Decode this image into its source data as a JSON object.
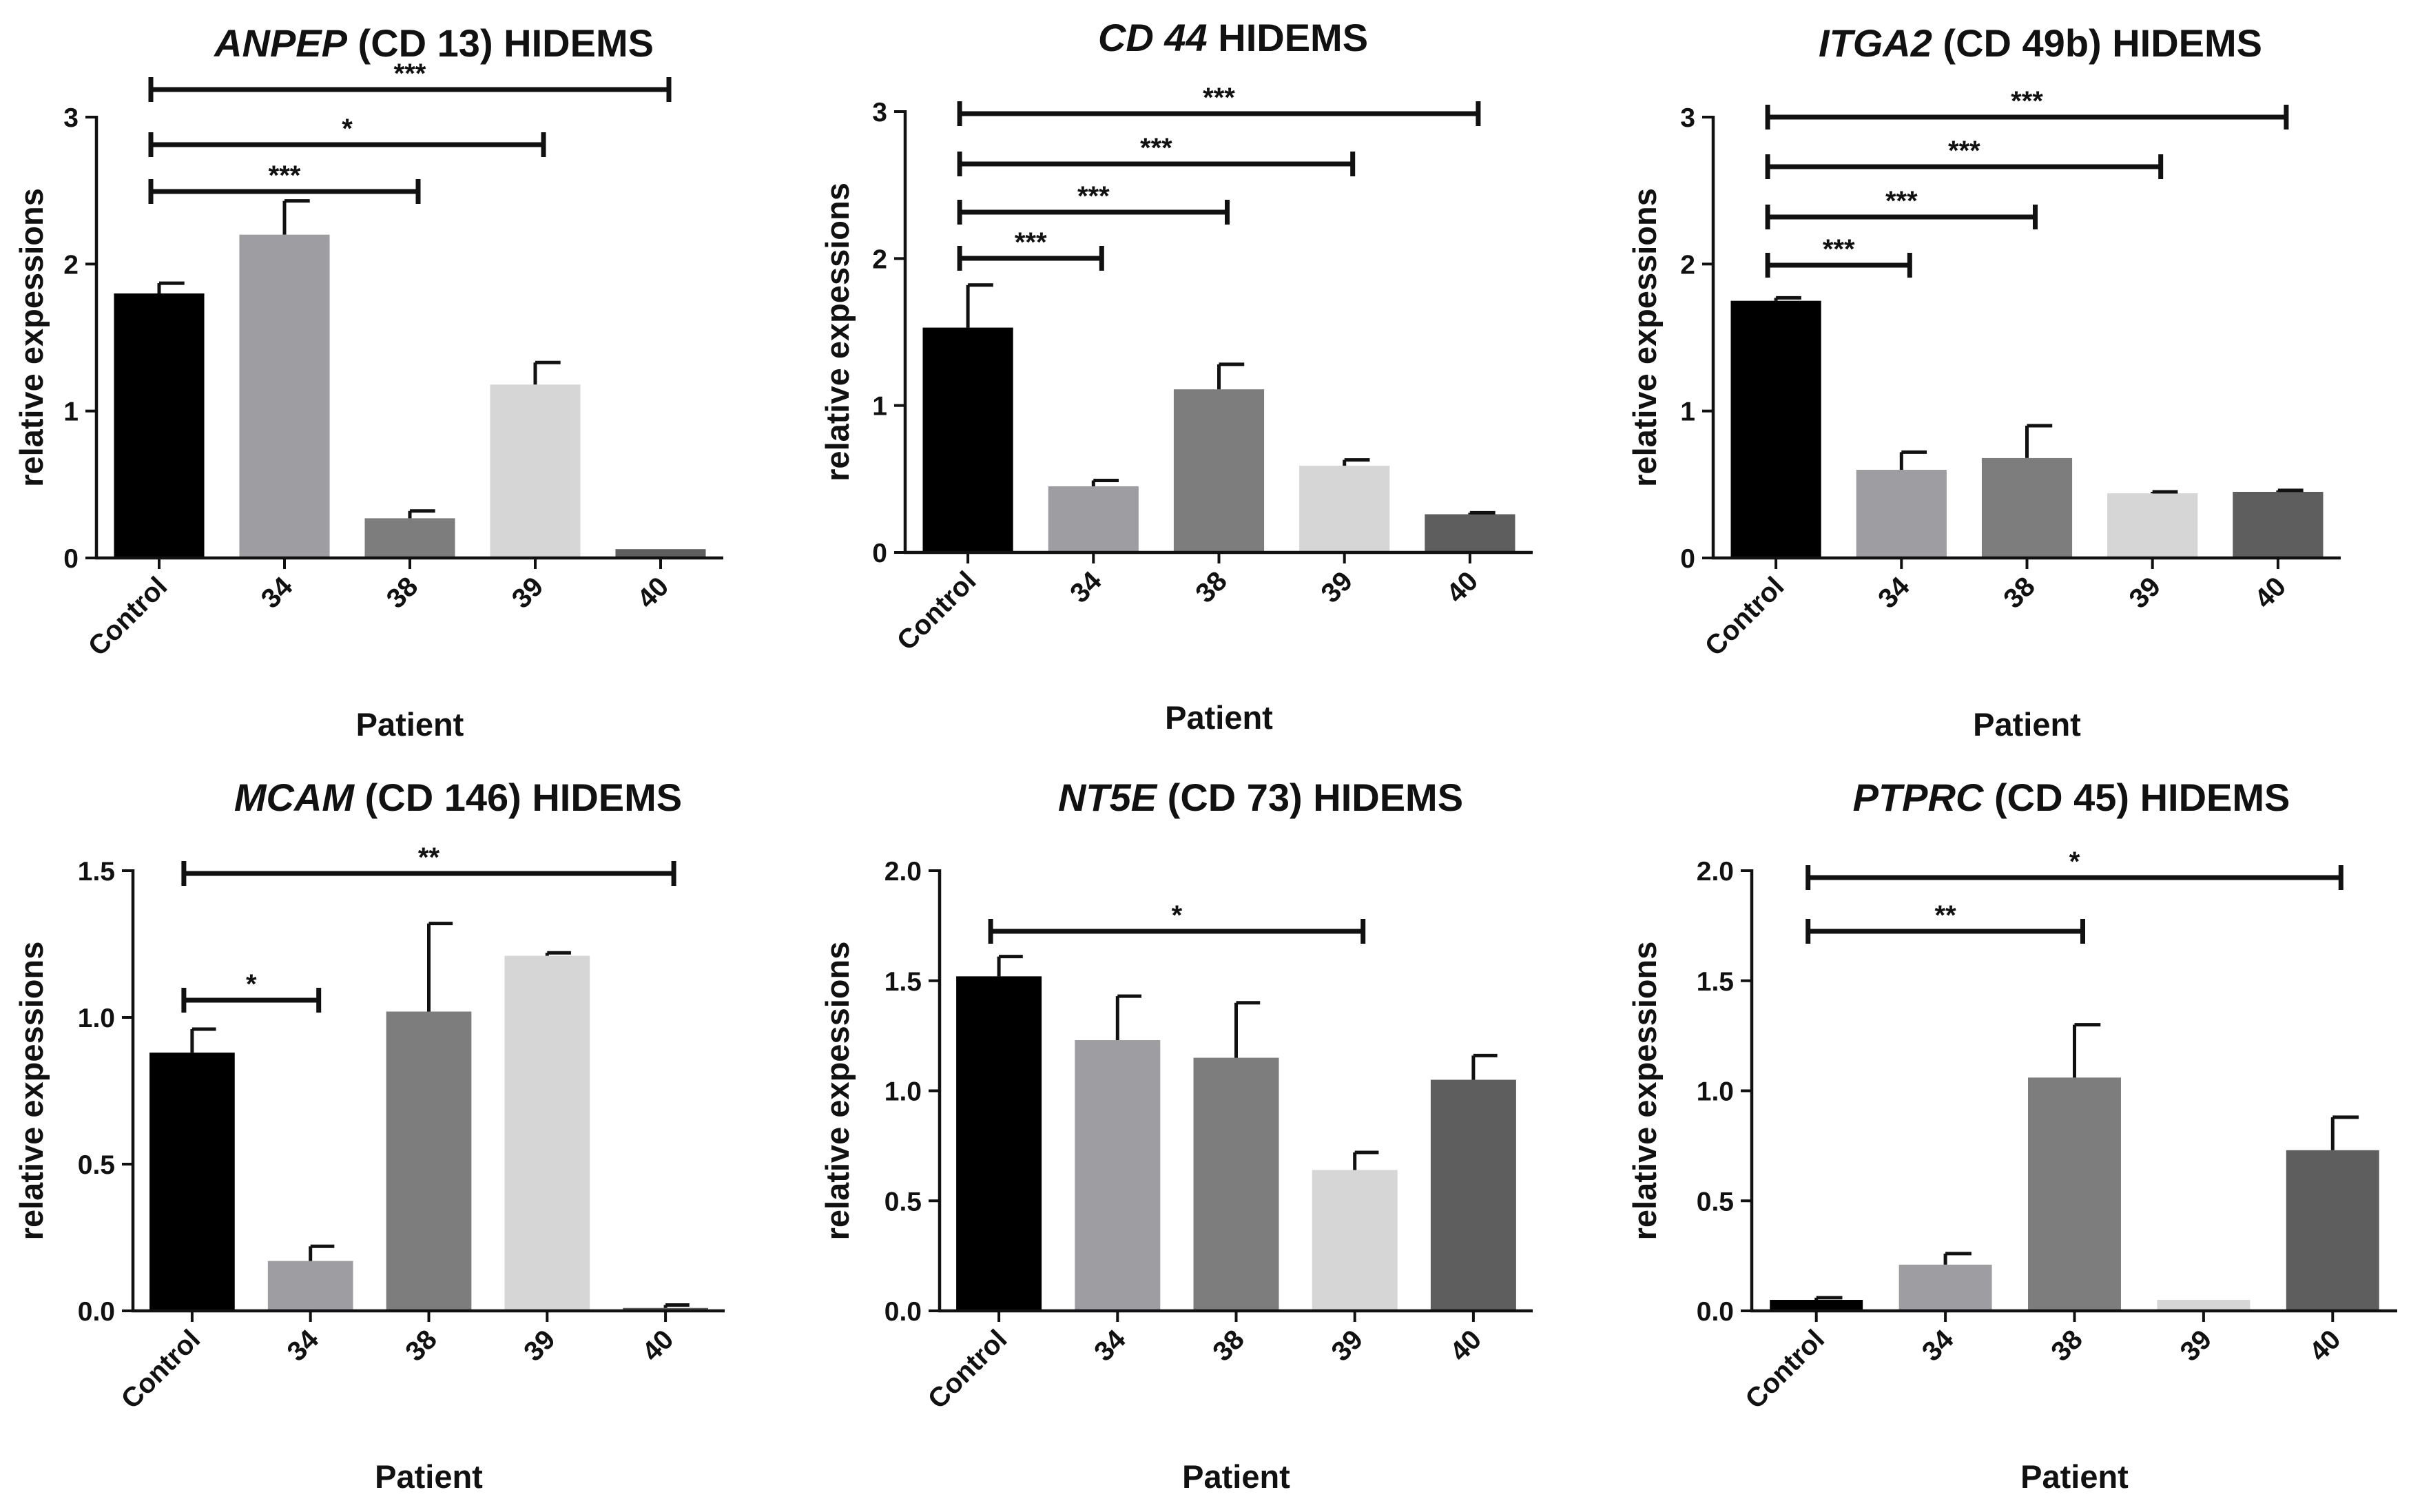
{
  "chart_data": [
    {
      "type": "bar",
      "title_gene": "ANPEP",
      "title_rest": " (CD 13) HIDEMS",
      "ylabel": "relative expessions",
      "xlabel": "Patient",
      "ylim": [
        0,
        3
      ],
      "yticks": [
        "0",
        "1",
        "2",
        "3"
      ],
      "categories": [
        "Control",
        "34",
        "38",
        "39",
        "40"
      ],
      "values": [
        1.8,
        2.2,
        0.27,
        1.18,
        0.06
      ],
      "errors": [
        0.07,
        0.23,
        0.05,
        0.15,
        0.0
      ],
      "colors": [
        "#000000",
        "#9e9ea2",
        "#7d7d7d",
        "#d6d6d6",
        "#5e5e5e"
      ],
      "significance": [
        {
          "from": 0,
          "to": 4,
          "label": "***"
        },
        {
          "from": 0,
          "to": 3,
          "label": "*"
        },
        {
          "from": 0,
          "to": 2,
          "label": "***"
        }
      ]
    },
    {
      "type": "bar",
      "title_gene": "CD 44",
      "title_rest": " HIDEMS",
      "ylabel": "relative expessions",
      "xlabel": "Patient",
      "ylim": [
        0,
        3
      ],
      "yticks": [
        "0",
        "1",
        "2",
        "3"
      ],
      "categories": [
        "Control",
        "34",
        "38",
        "39",
        "40"
      ],
      "values": [
        1.53,
        0.45,
        1.11,
        0.59,
        0.26
      ],
      "errors": [
        0.29,
        0.04,
        0.17,
        0.04,
        0.01
      ],
      "colors": [
        "#000000",
        "#9e9ea2",
        "#7d7d7d",
        "#d6d6d6",
        "#5e5e5e"
      ],
      "significance": [
        {
          "from": 0,
          "to": 4,
          "label": "***"
        },
        {
          "from": 0,
          "to": 3,
          "label": "***"
        },
        {
          "from": 0,
          "to": 2,
          "label": "***"
        },
        {
          "from": 0,
          "to": 1,
          "label": "***"
        }
      ]
    },
    {
      "type": "bar",
      "title_gene": "ITGA2",
      "title_rest": " (CD 49b) HIDEMS",
      "ylabel": "relative expessions",
      "xlabel": "Patient",
      "ylim": [
        0,
        3
      ],
      "yticks": [
        "0",
        "1",
        "2",
        "3"
      ],
      "categories": [
        "Control",
        "34",
        "38",
        "39",
        "40"
      ],
      "values": [
        1.75,
        0.6,
        0.68,
        0.44,
        0.45
      ],
      "errors": [
        0.02,
        0.12,
        0.22,
        0.01,
        0.01
      ],
      "colors": [
        "#000000",
        "#9e9ea2",
        "#7d7d7d",
        "#d6d6d6",
        "#5e5e5e"
      ],
      "significance": [
        {
          "from": 0,
          "to": 4,
          "label": "***"
        },
        {
          "from": 0,
          "to": 3,
          "label": "***"
        },
        {
          "from": 0,
          "to": 2,
          "label": "***"
        },
        {
          "from": 0,
          "to": 1,
          "label": "***"
        }
      ]
    },
    {
      "type": "bar",
      "title_gene": "MCAM",
      "title_rest": " (CD 146) HIDEMS",
      "ylabel": "relative expessions",
      "xlabel": "Patient",
      "ylim": [
        0,
        1.5
      ],
      "yticks": [
        "0.0",
        "0.5",
        "1.0",
        "1.5"
      ],
      "categories": [
        "Control",
        "34",
        "38",
        "39",
        "40"
      ],
      "values": [
        0.88,
        0.17,
        1.02,
        1.21,
        0.01
      ],
      "errors": [
        0.08,
        0.05,
        0.3,
        0.01,
        0.01
      ],
      "colors": [
        "#000000",
        "#9e9ea2",
        "#7d7d7d",
        "#d6d6d6",
        "#5e5e5e"
      ],
      "significance": [
        {
          "from": 0,
          "to": 4,
          "label": "**"
        },
        {
          "from": 0,
          "to": 1,
          "label": "*"
        }
      ]
    },
    {
      "type": "bar",
      "title_gene": "NT5E",
      "title_rest": " (CD 73) HIDEMS",
      "ylabel": "relative expessions",
      "xlabel": "Patient",
      "ylim": [
        0,
        2
      ],
      "yticks": [
        "0.0",
        "0.5",
        "1.0",
        "1.5",
        "2.0"
      ],
      "categories": [
        "Control",
        "34",
        "38",
        "39",
        "40"
      ],
      "values": [
        1.52,
        1.23,
        1.15,
        0.64,
        1.05
      ],
      "errors": [
        0.09,
        0.2,
        0.25,
        0.08,
        0.11
      ],
      "colors": [
        "#000000",
        "#9e9ea2",
        "#7d7d7d",
        "#d6d6d6",
        "#5e5e5e"
      ],
      "significance": [
        {
          "from": 0,
          "to": 3,
          "label": "*"
        }
      ]
    },
    {
      "type": "bar",
      "title_gene": "PTPRC",
      "title_rest": " (CD 45) HIDEMS",
      "ylabel": "relative expessions",
      "xlabel": "Patient",
      "ylim": [
        0,
        2
      ],
      "yticks": [
        "0.0",
        "0.5",
        "1.0",
        "1.5",
        "2.0"
      ],
      "categories": [
        "Control",
        "34",
        "38",
        "39",
        "40"
      ],
      "values": [
        0.05,
        0.21,
        1.06,
        0.05,
        0.73
      ],
      "errors": [
        0.01,
        0.05,
        0.24,
        0.0,
        0.15
      ],
      "colors": [
        "#000000",
        "#9e9ea2",
        "#7d7d7d",
        "#d6d6d6",
        "#5e5e5e"
      ],
      "significance": [
        {
          "from": 0,
          "to": 4,
          "label": "*"
        },
        {
          "from": 0,
          "to": 2,
          "label": "**"
        }
      ]
    }
  ]
}
